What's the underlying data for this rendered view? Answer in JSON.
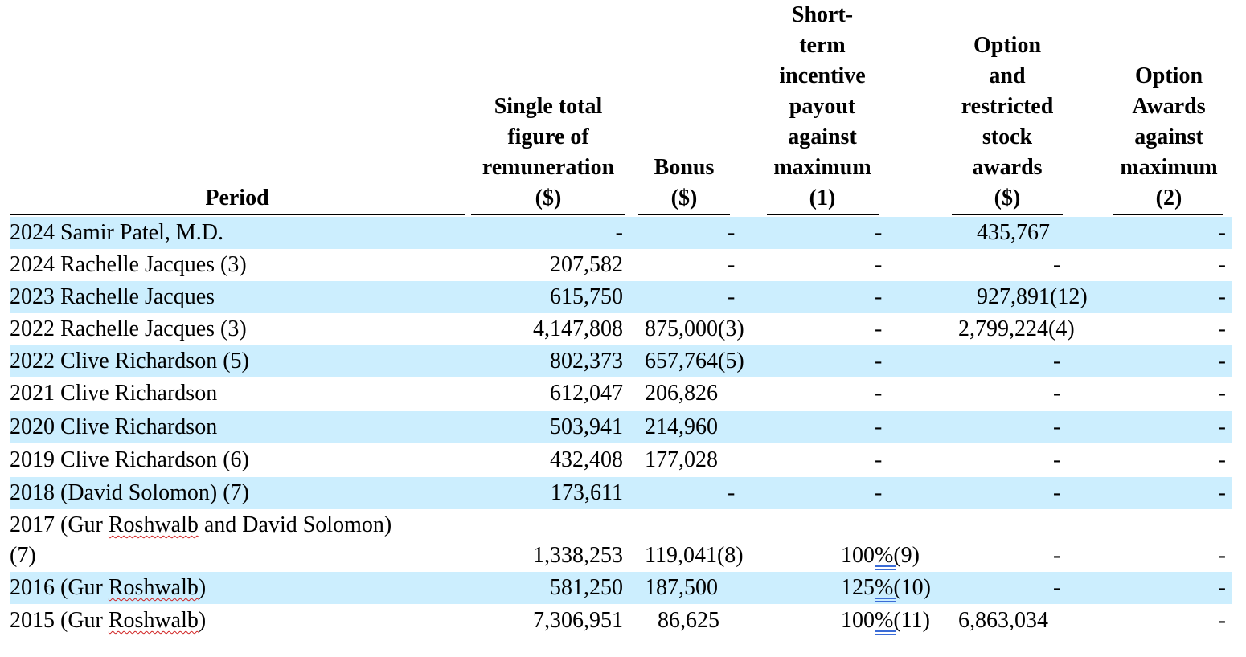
{
  "headers": {
    "period": "Period",
    "total": [
      "Single total",
      "figure of",
      "remuneration",
      "($)"
    ],
    "bonus": [
      "Bonus",
      "($)"
    ],
    "short": [
      "Short-",
      "term",
      "incentive",
      "payout",
      "against",
      "maximum",
      "(1)"
    ],
    "option": [
      "Option",
      "and",
      "restricted",
      "stock",
      "awards",
      "($)"
    ],
    "award": [
      "Option",
      "Awards",
      "against",
      "maximum",
      "(2)"
    ]
  },
  "rows": [
    {
      "period": "2024 Samir Patel, M.D.",
      "total": "-",
      "bonus": "-",
      "short": "-",
      "option": "435,767",
      "award": "-"
    },
    {
      "period": "2024 Rachelle Jacques (3)",
      "total": "207,582",
      "bonus": "-",
      "short": "-",
      "option": "-",
      "award": "-"
    },
    {
      "period": "2023 Rachelle Jacques",
      "total": "615,750",
      "bonus": "-",
      "short": "-",
      "option": "927,891(12)",
      "award": "-"
    },
    {
      "period": "2022 Rachelle Jacques (3)",
      "total": "4,147,808",
      "bonus": "875,000(3)",
      "short": "-",
      "option": "2,799,224(4)",
      "award": "-"
    },
    {
      "period": "2022 Clive Richardson (5)",
      "total": "802,373",
      "bonus": "657,764(5)",
      "short": "-",
      "option": "-",
      "award": "-"
    },
    {
      "period": "2021 Clive Richardson",
      "total": "612,047",
      "bonus": "206,826",
      "short": "-",
      "option": "-",
      "award": "-"
    },
    {
      "period": "2020 Clive Richardson",
      "total": "503,941",
      "bonus": "214,960",
      "short": "-",
      "option": "-",
      "award": "-"
    },
    {
      "period": "2019 Clive Richardson (6)",
      "total": "432,408",
      "bonus": "177,028",
      "short": "-",
      "option": "-",
      "award": "-"
    },
    {
      "period": "2018 (David Solomon) (7)",
      "total": "173,611",
      "bonus": "-",
      "short": "-",
      "option": "-",
      "award": "-"
    },
    {
      "period_line1": "2017 (Gur Roshwalb and David Solomon)",
      "period": "(7)",
      "total": "1,338,253",
      "bonus": "119,041(8)",
      "short": "100%(9)",
      "option": "-",
      "award": "-"
    },
    {
      "period": "2016 (Gur Roshwalb)",
      "total": "581,250",
      "bonus": "187,500",
      "short": "125%(10)",
      "option": "-",
      "award": "-"
    },
    {
      "period": "2015 (Gur Roshwalb)",
      "total": "7,306,951",
      "bonus": "86,625",
      "short": "100%(11)",
      "option": "6,863,034",
      "award": "-"
    }
  ],
  "colors": {
    "shade": "#cceefe"
  }
}
